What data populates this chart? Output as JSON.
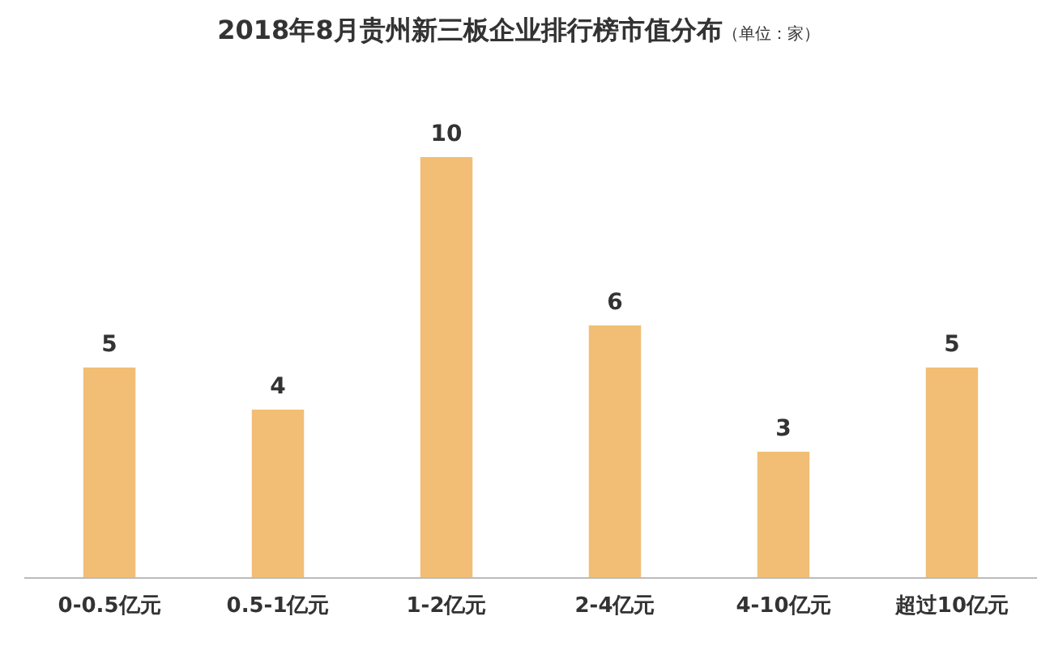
{
  "chart_data": {
    "type": "bar",
    "title": "2018年8月贵州新三板企业排行榜市值分布",
    "subtitle": "（单位：家）",
    "categories": [
      "0-0.5亿元",
      "0.5-1亿元",
      "1-2亿元",
      "2-4亿元",
      "4-10亿元",
      "超过10亿元"
    ],
    "values": [
      5,
      4,
      10,
      6,
      3,
      5
    ],
    "color": "#f2be75",
    "data_labels": true
  }
}
